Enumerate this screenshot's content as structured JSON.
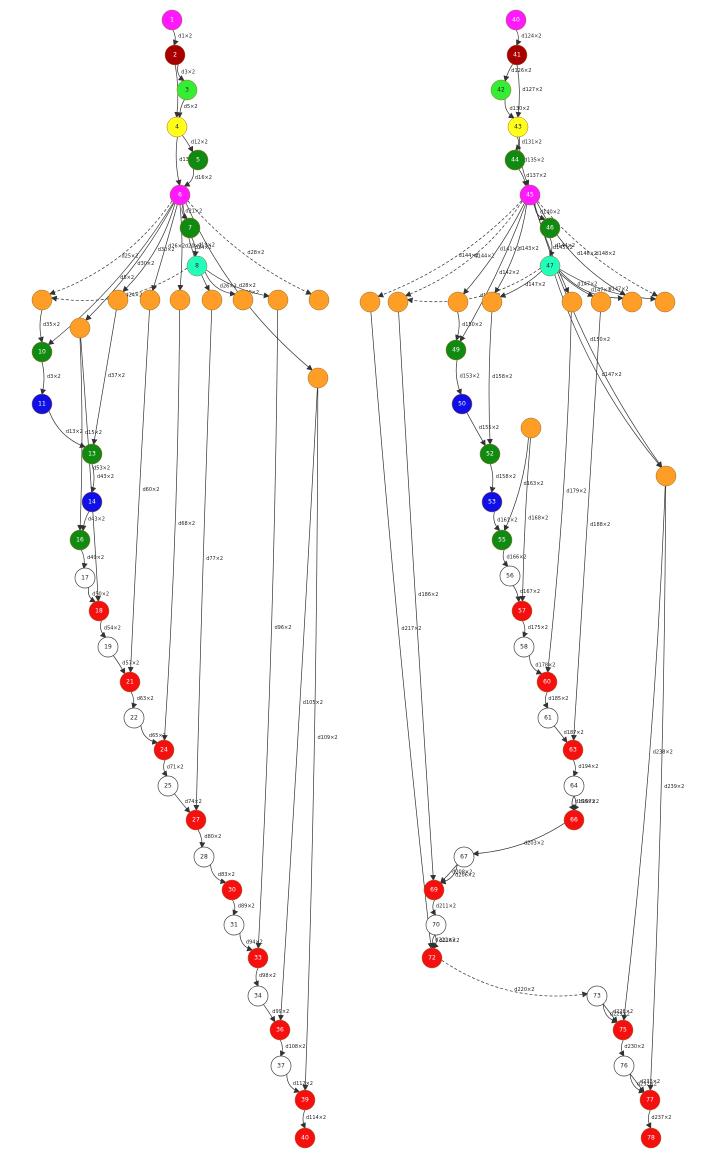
{
  "colors": {
    "magenta": "#ff19ff",
    "darkred": "#a80000",
    "lime": "#33ee33",
    "yellow": "#ffff1a",
    "green": "#118a11",
    "aqua": "#22ffbb",
    "orange": "#ff9e26",
    "blue": "#0f0fe6",
    "white": "#ffffff",
    "red": "#f50f0f"
  },
  "graphs": [
    {
      "id": "left",
      "nodes": [
        {
          "id": "L1",
          "label": "1",
          "color": "magenta"
        },
        {
          "id": "L2",
          "label": "2",
          "color": "darkred"
        },
        {
          "id": "L3",
          "label": "3",
          "color": "lime"
        },
        {
          "id": "L4",
          "label": "4",
          "color": "yellow"
        },
        {
          "id": "L5",
          "label": "5",
          "color": "green"
        },
        {
          "id": "L6",
          "label": "6",
          "color": "magenta"
        },
        {
          "id": "L7",
          "label": "7",
          "color": "green"
        },
        {
          "id": "L8",
          "label": "8",
          "color": "aqua"
        },
        {
          "id": "Lo1",
          "label": "",
          "color": "orange"
        },
        {
          "id": "Lo2",
          "label": "",
          "color": "orange"
        },
        {
          "id": "Lo3",
          "label": "",
          "color": "orange"
        },
        {
          "id": "Lo4",
          "label": "",
          "color": "orange"
        },
        {
          "id": "Lo5",
          "label": "",
          "color": "orange"
        },
        {
          "id": "Lo6",
          "label": "",
          "color": "orange"
        },
        {
          "id": "Lo7",
          "label": "",
          "color": "orange"
        },
        {
          "id": "Lo8",
          "label": "",
          "color": "orange"
        },
        {
          "id": "Lo9",
          "label": "",
          "color": "orange"
        },
        {
          "id": "Lo10",
          "label": "",
          "color": "orange"
        },
        {
          "id": "L10",
          "label": "10",
          "color": "green"
        },
        {
          "id": "L11",
          "label": "11",
          "color": "blue"
        },
        {
          "id": "L13",
          "label": "13",
          "color": "green"
        },
        {
          "id": "L14",
          "label": "14",
          "color": "blue"
        },
        {
          "id": "L16",
          "label": "16",
          "color": "green"
        },
        {
          "id": "L17",
          "label": "17",
          "color": "white"
        },
        {
          "id": "L18",
          "label": "18",
          "color": "red"
        },
        {
          "id": "L19",
          "label": "19",
          "color": "white"
        },
        {
          "id": "L21",
          "label": "21",
          "color": "red"
        },
        {
          "id": "L22",
          "label": "22",
          "color": "white"
        },
        {
          "id": "L24",
          "label": "24",
          "color": "red"
        },
        {
          "id": "L25",
          "label": "25",
          "color": "white"
        },
        {
          "id": "L27",
          "label": "27",
          "color": "red"
        },
        {
          "id": "L28",
          "label": "28",
          "color": "white"
        },
        {
          "id": "L30",
          "label": "30",
          "color": "red"
        },
        {
          "id": "L31",
          "label": "31",
          "color": "white"
        },
        {
          "id": "L33",
          "label": "33",
          "color": "red"
        },
        {
          "id": "L34",
          "label": "34",
          "color": "white"
        },
        {
          "id": "L36",
          "label": "36",
          "color": "red"
        },
        {
          "id": "L37",
          "label": "37",
          "color": "white"
        },
        {
          "id": "L39",
          "label": "39",
          "color": "red"
        },
        {
          "id": "L40",
          "label": "40",
          "color": "red"
        }
      ],
      "edges": [
        {
          "from": "L1",
          "to": "L2",
          "label": "d1×2"
        },
        {
          "from": "L2",
          "to": "L3",
          "label": "d3×2"
        },
        {
          "from": "L2",
          "to": "L4",
          "label": "d4×2"
        },
        {
          "from": "L3",
          "to": "L4",
          "label": "d5×2"
        },
        {
          "from": "L4",
          "to": "L5",
          "label": "d12×2"
        },
        {
          "from": "L4",
          "to": "L6",
          "label": "d13×2"
        },
        {
          "from": "L5",
          "to": "L6",
          "label": "d16×2"
        },
        {
          "from": "L6",
          "to": "L7",
          "label": "d21×2"
        },
        {
          "from": "L7",
          "to": "L8",
          "label": "d19×2"
        },
        {
          "from": "L6",
          "to": "L10",
          "label": "d5×2"
        },
        {
          "from": "L6",
          "to": "Lo1",
          "label": "d25×2"
        },
        {
          "from": "L6",
          "to": "Lo2",
          "label": "d30×2"
        },
        {
          "from": "L6",
          "to": "Lo3",
          "label": "d30×2"
        },
        {
          "from": "L6",
          "to": "Lo4",
          "label": "d26×2"
        },
        {
          "from": "L6",
          "to": "Lo5",
          "label": "d20×2"
        },
        {
          "from": "L6",
          "to": "Lo6",
          "label": "d24×2"
        },
        {
          "from": "L6",
          "to": "Lo9",
          "label": "d28×2"
        },
        {
          "from": "L6",
          "to": "Lo10",
          "label": "d30×2"
        },
        {
          "from": "L8",
          "to": "Lo1",
          "label": "d24×2"
        },
        {
          "from": "L8",
          "to": "Lo7",
          "label": "d26×2"
        },
        {
          "from": "L8",
          "to": "Lo8",
          "label": "d28×2"
        },
        {
          "from": "Lo1",
          "to": "L10",
          "label": "d35×2"
        },
        {
          "from": "L10",
          "to": "L11",
          "label": "d3×2"
        },
        {
          "from": "L11",
          "to": "L13",
          "label": "d13×2"
        },
        {
          "from": "Lo2",
          "to": "L16",
          "label": "d15×2"
        },
        {
          "from": "Lo3",
          "to": "L13",
          "label": "d37×2"
        },
        {
          "from": "L13",
          "to": "L14",
          "label": "d43×2"
        },
        {
          "from": "L14",
          "to": "L16",
          "label": "d43×2"
        },
        {
          "from": "L16",
          "to": "L17",
          "label": "d49×2"
        },
        {
          "from": "L17",
          "to": "L18",
          "label": "d50×2"
        },
        {
          "from": "Lo2",
          "to": "L18",
          "label": "d53×2"
        },
        {
          "from": "L18",
          "to": "L19",
          "label": "d54×2"
        },
        {
          "from": "L19",
          "to": "L21",
          "label": "d57×2"
        },
        {
          "from": "Lo4",
          "to": "L21",
          "label": "d60×2"
        },
        {
          "from": "L21",
          "to": "L22",
          "label": "d63×2"
        },
        {
          "from": "L22",
          "to": "L24",
          "label": "d65×2"
        },
        {
          "from": "Lo5",
          "to": "L24",
          "label": "d68×2"
        },
        {
          "from": "L24",
          "to": "L25",
          "label": "d71×2"
        },
        {
          "from": "L25",
          "to": "L27",
          "label": "d74×2"
        },
        {
          "from": "Lo6",
          "to": "L27",
          "label": "d77×2"
        },
        {
          "from": "L27",
          "to": "L28",
          "label": "d80×2"
        },
        {
          "from": "L28",
          "to": "L30",
          "label": "d83×2"
        },
        {
          "from": "L30",
          "to": "L31",
          "label": "d89×2"
        },
        {
          "from": "L31",
          "to": "L33",
          "label": "d94×2"
        },
        {
          "from": "Lo8",
          "to": "L33",
          "label": "d96×2"
        },
        {
          "from": "L33",
          "to": "L34",
          "label": "d98×2"
        },
        {
          "from": "L34",
          "to": "L36",
          "label": "d99×2"
        },
        {
          "from": "Lo10",
          "to": "L36",
          "label": "d105×2"
        },
        {
          "from": "L36",
          "to": "L37",
          "label": "d108×2"
        },
        {
          "from": "L37",
          "to": "L39",
          "label": "d112×2"
        },
        {
          "from": "Lo10",
          "to": "L39",
          "label": "d109×2"
        },
        {
          "from": "L39",
          "to": "L40",
          "label": "d114×2"
        }
      ]
    },
    {
      "id": "right",
      "nodes": [
        {
          "id": "R40",
          "label": "40",
          "color": "magenta"
        },
        {
          "id": "R41",
          "label": "41",
          "color": "darkred"
        },
        {
          "id": "R42",
          "label": "42",
          "color": "lime"
        },
        {
          "id": "R43",
          "label": "43",
          "color": "yellow"
        },
        {
          "id": "R44",
          "label": "44",
          "color": "green"
        },
        {
          "id": "R45",
          "label": "45",
          "color": "magenta"
        },
        {
          "id": "R46",
          "label": "46",
          "color": "green"
        },
        {
          "id": "R47",
          "label": "47",
          "color": "aqua"
        },
        {
          "id": "Ro1",
          "label": "",
          "color": "orange"
        },
        {
          "id": "Ro2",
          "label": "",
          "color": "orange"
        },
        {
          "id": "Ro3",
          "label": "",
          "color": "orange"
        },
        {
          "id": "Ro4",
          "label": "",
          "color": "orange"
        },
        {
          "id": "Ro5",
          "label": "",
          "color": "orange"
        },
        {
          "id": "Ro6",
          "label": "",
          "color": "orange"
        },
        {
          "id": "Ro7",
          "label": "",
          "color": "orange"
        },
        {
          "id": "Ro8",
          "label": "",
          "color": "orange"
        },
        {
          "id": "Ro9",
          "label": "",
          "color": "orange"
        },
        {
          "id": "Ro10",
          "label": "",
          "color": "orange"
        },
        {
          "id": "R49",
          "label": "49",
          "color": "green"
        },
        {
          "id": "R50",
          "label": "50",
          "color": "blue"
        },
        {
          "id": "R52",
          "label": "52",
          "color": "green"
        },
        {
          "id": "R53",
          "label": "53",
          "color": "blue"
        },
        {
          "id": "R55",
          "label": "55",
          "color": "green"
        },
        {
          "id": "R56",
          "label": "56",
          "color": "white"
        },
        {
          "id": "R57",
          "label": "57",
          "color": "red"
        },
        {
          "id": "R58",
          "label": "58",
          "color": "white"
        },
        {
          "id": "R60",
          "label": "60",
          "color": "red"
        },
        {
          "id": "R61",
          "label": "61",
          "color": "white"
        },
        {
          "id": "R63",
          "label": "63",
          "color": "red"
        },
        {
          "id": "R64",
          "label": "64",
          "color": "white"
        },
        {
          "id": "R66",
          "label": "66",
          "color": "red"
        },
        {
          "id": "R67",
          "label": "67",
          "color": "white"
        },
        {
          "id": "R69",
          "label": "69",
          "color": "red"
        },
        {
          "id": "R70",
          "label": "70",
          "color": "white"
        },
        {
          "id": "R72",
          "label": "72",
          "color": "red"
        },
        {
          "id": "R73",
          "label": "73",
          "color": "white"
        },
        {
          "id": "R75",
          "label": "75",
          "color": "red"
        },
        {
          "id": "R76",
          "label": "76",
          "color": "white"
        },
        {
          "id": "R77",
          "label": "77",
          "color": "red"
        },
        {
          "id": "R78",
          "label": "78",
          "color": "red"
        }
      ],
      "edges": [
        {
          "from": "R40",
          "to": "R41",
          "label": "d124×2"
        },
        {
          "from": "R41",
          "to": "R42",
          "label": "d126×2"
        },
        {
          "from": "R41",
          "to": "R43",
          "label": "d127×2"
        },
        {
          "from": "R42",
          "to": "R43",
          "label": "d130×2"
        },
        {
          "from": "R43",
          "to": "R44",
          "label": "d131×2"
        },
        {
          "from": "R43",
          "to": "R45",
          "label": "d135×2"
        },
        {
          "from": "R44",
          "to": "R45",
          "label": "d137×2"
        },
        {
          "from": "R45",
          "to": "R46",
          "label": "d140×2"
        },
        {
          "from": "R46",
          "to": "R47",
          "label": "d144×2"
        },
        {
          "from": "R45",
          "to": "Ro1",
          "label": "d144×2"
        },
        {
          "from": "R45",
          "to": "Ro2",
          "label": "d144×2"
        },
        {
          "from": "R45",
          "to": "Ro3",
          "label": "d141×2"
        },
        {
          "from": "R45",
          "to": "Ro4",
          "label": "d143×2"
        },
        {
          "from": "R45",
          "to": "R49",
          "label": "d142×2"
        },
        {
          "from": "R45",
          "to": "Ro5",
          "label": "d145×2"
        },
        {
          "from": "R45",
          "to": "Ro7",
          "label": "d146×2"
        },
        {
          "from": "R45",
          "to": "Ro8",
          "label": "d148×2"
        },
        {
          "from": "R45",
          "to": "Ro10",
          "label": "d150×2"
        },
        {
          "from": "R47",
          "to": "Ro2",
          "label": "d147×2"
        },
        {
          "from": "R47",
          "to": "Ro4",
          "label": "d147×2"
        },
        {
          "from": "R47",
          "to": "Ro6",
          "label": "d147×2"
        },
        {
          "from": "R47",
          "to": "Ro7",
          "label": "d147×2"
        },
        {
          "from": "R47",
          "to": "Ro8",
          "label": "d147×2"
        },
        {
          "from": "R47",
          "to": "Ro10",
          "label": "d147×2"
        },
        {
          "from": "Ro3",
          "to": "R49",
          "label": "d150×2"
        },
        {
          "from": "R49",
          "to": "R50",
          "label": "d153×2"
        },
        {
          "from": "R50",
          "to": "R52",
          "label": "d155×2"
        },
        {
          "from": "Ro4",
          "to": "R52",
          "label": "d158×2"
        },
        {
          "from": "R52",
          "to": "R53",
          "label": "d158×2"
        },
        {
          "from": "R53",
          "to": "R55",
          "label": "d161×2"
        },
        {
          "from": "Ro9",
          "to": "R55",
          "label": "d163×2"
        },
        {
          "from": "R55",
          "to": "R56",
          "label": "d166×2"
        },
        {
          "from": "R56",
          "to": "R57",
          "label": "d167×2"
        },
        {
          "from": "Ro9",
          "to": "R57",
          "label": "d168×2"
        },
        {
          "from": "R57",
          "to": "R58",
          "label": "d175×2"
        },
        {
          "from": "R58",
          "to": "R60",
          "label": "d178×2"
        },
        {
          "from": "Ro5",
          "to": "R60",
          "label": "d179×2"
        },
        {
          "from": "R60",
          "to": "R61",
          "label": "d185×2"
        },
        {
          "from": "R61",
          "to": "R63",
          "label": "d187×2"
        },
        {
          "from": "Ro6",
          "to": "R63",
          "label": "d188×2"
        },
        {
          "from": "R63",
          "to": "R64",
          "label": "d194×2"
        },
        {
          "from": "R64",
          "to": "R66",
          "label": "d196×2"
        },
        {
          "from": "R64",
          "to": "R66",
          "label": "d197×2"
        },
        {
          "from": "R66",
          "to": "R67",
          "label": "d203×2"
        },
        {
          "from": "R67",
          "to": "R69",
          "label": "d206×2"
        },
        {
          "from": "R67",
          "to": "R69",
          "label": "d208×2"
        },
        {
          "from": "Ro2",
          "to": "R69",
          "label": "d186×2"
        },
        {
          "from": "R69",
          "to": "R70",
          "label": "d211×2"
        },
        {
          "from": "R70",
          "to": "R72",
          "label": "d216×2"
        },
        {
          "from": "R70",
          "to": "R72",
          "label": "d222×2"
        },
        {
          "from": "Ro1",
          "to": "R72",
          "label": "d217×2"
        },
        {
          "from": "R72",
          "to": "R73",
          "label": "d220×2"
        },
        {
          "from": "R73",
          "to": "R75",
          "label": "d226×2"
        },
        {
          "from": "R73",
          "to": "R75",
          "label": "d229×2"
        },
        {
          "from": "Ro10",
          "to": "R75",
          "label": "d238×2"
        },
        {
          "from": "R75",
          "to": "R76",
          "label": "d230×2"
        },
        {
          "from": "R76",
          "to": "R77",
          "label": "d233×2"
        },
        {
          "from": "R76",
          "to": "R77",
          "label": "d232×2"
        },
        {
          "from": "Ro10",
          "to": "R77",
          "label": "d239×2"
        },
        {
          "from": "R77",
          "to": "R78",
          "label": "d237×2"
        }
      ]
    }
  ]
}
